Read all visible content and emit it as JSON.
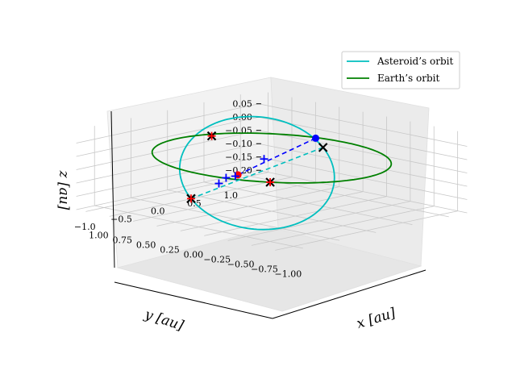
{
  "chart_data": {
    "type": "line3d",
    "axes": {
      "x": {
        "label": "x [au]",
        "ticks": [
          "1.00",
          "0.75",
          "0.50",
          "0.25",
          "0.00",
          "−0.25",
          "−0.50",
          "−0.75",
          "−1.00"
        ]
      },
      "y": {
        "label": "y [au]",
        "ticks": [
          "1.0",
          "0.5",
          "0.0",
          "−0.5",
          "−1.0"
        ]
      },
      "z": {
        "label": "z [au]",
        "ticks": [
          "0.05",
          "0.00",
          "−0.05",
          "−0.10",
          "−0.15",
          "−0.20"
        ]
      }
    },
    "ranges": {
      "x": [
        -1.1,
        1.1
      ],
      "y": [
        -1.25,
        1.25
      ],
      "z": [
        -0.2,
        0.1
      ]
    },
    "grid": true,
    "legend": {
      "placement": "top-right",
      "entries": [
        {
          "label": "Asteroid’s orbit",
          "color": "#00bfbf"
        },
        {
          "label": "Earth’s orbit",
          "color": "#008000"
        }
      ]
    },
    "series": [
      {
        "name": "Asteroid’s orbit",
        "color": "#00bfbf",
        "shape": "ellipse",
        "center": [
          0.07,
          -0.11,
          -0.055
        ],
        "axis_u": [
          0.85,
          0.55,
          0.095
        ],
        "axis_v": [
          -0.35,
          0.45,
          0.095
        ]
      },
      {
        "name": "Earth’s orbit",
        "color": "#008000",
        "shape": "circle",
        "center": [
          0,
          0,
          0
        ],
        "radius": 1.0
      }
    ],
    "lines": [
      {
        "color": "#00bfbf",
        "style": "dashed",
        "from": [
          -0.28,
          0.34,
          0.04
        ],
        "to": [
          0.42,
          -0.56,
          -0.15
        ]
      },
      {
        "color": "#0000ff",
        "style": "dashed",
        "from": [
          0.26,
          0.94,
          0.0
        ],
        "to": [
          -0.36,
          -0.93,
          0.018
        ]
      }
    ],
    "points": [
      {
        "marker": "x",
        "color": "#000000",
        "xyz": [
          -0.28,
          0.34,
          0.04
        ]
      },
      {
        "marker": "x",
        "color": "#000000",
        "xyz": [
          0.42,
          -0.56,
          -0.15
        ]
      },
      {
        "marker": "x",
        "color": "#000000",
        "xyz": [
          0.88,
          0.32,
          0.0
        ]
      },
      {
        "marker": "x",
        "color": "#000000",
        "xyz": [
          -0.6,
          -0.8,
          0.0
        ]
      },
      {
        "marker": "+",
        "color": "#ff0000",
        "xyz": [
          0.88,
          0.32,
          0.0
        ]
      },
      {
        "marker": "+",
        "color": "#ff0000",
        "xyz": [
          -0.6,
          -0.8,
          0.0
        ]
      },
      {
        "marker": "+",
        "color": "#ff0000",
        "xyz": [
          0.42,
          -0.56,
          -0.15
        ]
      },
      {
        "marker": "dot",
        "color": "#0000ff",
        "xyz": [
          0.26,
          0.94,
          0.0
        ]
      },
      {
        "marker": "dot",
        "color": "#ff0000",
        "xyz": [
          -0.36,
          -0.93,
          0.018
        ]
      },
      {
        "marker": "+",
        "color": "#0000ff",
        "xyz": [
          -0.34,
          -0.94,
          0.012
        ]
      },
      {
        "marker": "+",
        "color": "#0000ff",
        "xyz": [
          -0.25,
          -0.95,
          0.0
        ]
      },
      {
        "marker": "+",
        "color": "#0000ff",
        "xyz": [
          0.05,
          -0.04,
          -0.005
        ]
      },
      {
        "marker": "+",
        "color": "#0000ff",
        "xyz": [
          0.65,
          0.12,
          -0.15
        ]
      }
    ]
  }
}
